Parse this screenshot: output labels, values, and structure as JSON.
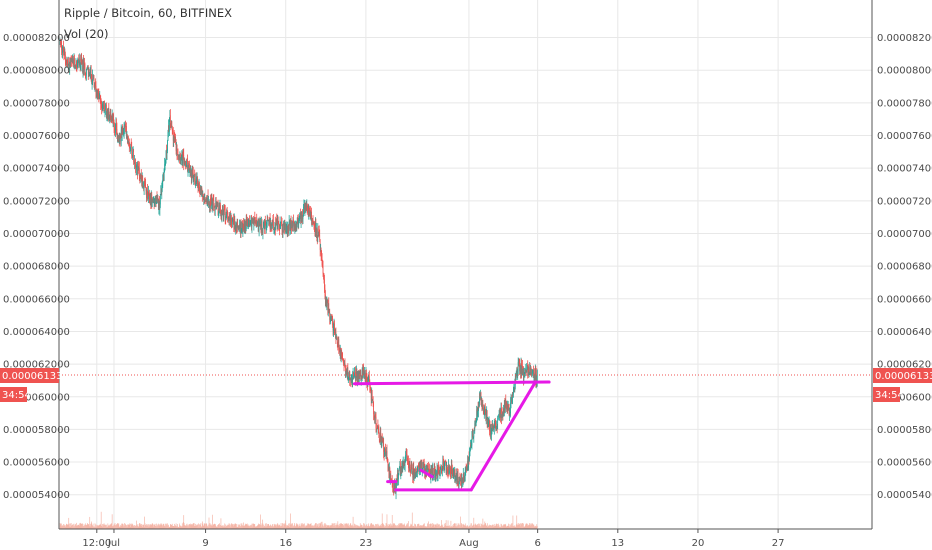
{
  "header": {
    "title": "Ripple / Bitcoin, 60, BITFINEX",
    "volume_label": "Vol (20)"
  },
  "colors": {
    "up": "#26a69a",
    "down": "#ef5350",
    "price_line": "#ef5350",
    "drawing": "#e619e6",
    "grid": "#e8e8e8",
    "volume": "#f5b6a8"
  },
  "chart_data": {
    "type": "candlestick",
    "symbol": "Ripple / Bitcoin",
    "interval": "60",
    "exchange": "BITFINEX",
    "y_axis_labels": [
      "0.000082000",
      "0.000080000",
      "0.000078000",
      "0.000076000",
      "0.000074000",
      "0.000072000",
      "0.000070000",
      "0.000068000",
      "0.000066000",
      "0.000064000",
      "0.000062000",
      "0.000060000",
      "0.000058000",
      "0.000056000",
      "0.000054000"
    ],
    "y_axis_values": [
      8.2e-05,
      8e-05,
      7.8e-05,
      7.6e-05,
      7.4e-05,
      7.2e-05,
      7e-05,
      6.8e-05,
      6.6e-05,
      6.4e-05,
      6.2e-05,
      6e-05,
      5.8e-05,
      5.6e-05,
      5.4e-05
    ],
    "ylim": [
      5.19e-05,
      8.43e-05
    ],
    "x_axis_labels": [
      "12:00",
      "Jul",
      "9",
      "16",
      "23",
      "Aug",
      "6",
      "13",
      "20",
      "27"
    ],
    "x_tick_days": [
      -0.5,
      1,
      9,
      16,
      23,
      32,
      38,
      45,
      52,
      59
    ],
    "xlim_days": [
      -3.8,
      67.2
    ],
    "last_price": "0.000061330",
    "last_price_value": 6.133e-05,
    "countdown": "34:54",
    "price_path": [
      [
        -3.7,
        8.18e-05
      ],
      [
        -3.0,
        8.03e-05
      ],
      [
        -2.0,
        8.05e-05
      ],
      [
        -1.0,
        7.97e-05
      ],
      [
        0.0,
        7.78e-05
      ],
      [
        0.8,
        7.72e-05
      ],
      [
        1.5,
        7.58e-05
      ],
      [
        2.0,
        7.65e-05
      ],
      [
        3.0,
        7.42e-05
      ],
      [
        4.0,
        7.22e-05
      ],
      [
        5.0,
        7.18e-05
      ],
      [
        5.6,
        7.48e-05
      ],
      [
        5.9,
        7.7e-05
      ],
      [
        6.5,
        7.52e-05
      ],
      [
        7.5,
        7.4e-05
      ],
      [
        8.5,
        7.28e-05
      ],
      [
        9.0,
        7.22e-05
      ],
      [
        10.0,
        7.15e-05
      ],
      [
        11.0,
        7.11e-05
      ],
      [
        12.0,
        7.03e-05
      ],
      [
        13.0,
        7.08e-05
      ],
      [
        14.0,
        7.04e-05
      ],
      [
        15.0,
        7.06e-05
      ],
      [
        16.0,
        7.03e-05
      ],
      [
        17.0,
        7.06e-05
      ],
      [
        17.8,
        7.16e-05
      ],
      [
        18.5,
        7.06e-05
      ],
      [
        19.0,
        6.96e-05
      ],
      [
        19.5,
        6.6e-05
      ],
      [
        20.0,
        6.48e-05
      ],
      [
        20.8,
        6.28e-05
      ],
      [
        21.5,
        6.13e-05
      ],
      [
        22.0,
        6.12e-05
      ],
      [
        22.8,
        6.14e-05
      ],
      [
        23.3,
        6.1e-05
      ],
      [
        24.0,
        5.8e-05
      ],
      [
        24.8,
        5.65e-05
      ],
      [
        25.2,
        5.48e-05
      ],
      [
        25.6,
        5.43e-05
      ],
      [
        26.0,
        5.56e-05
      ],
      [
        26.6,
        5.62e-05
      ],
      [
        27.2,
        5.53e-05
      ],
      [
        27.8,
        5.58e-05
      ],
      [
        28.4,
        5.54e-05
      ],
      [
        29.0,
        5.53e-05
      ],
      [
        29.8,
        5.58e-05
      ],
      [
        30.5,
        5.55e-05
      ],
      [
        31.2,
        5.48e-05
      ],
      [
        31.6,
        5.52e-05
      ],
      [
        32.0,
        5.6e-05
      ],
      [
        32.5,
        5.82e-05
      ],
      [
        33.0,
        6e-05
      ],
      [
        33.5,
        5.9e-05
      ],
      [
        34.0,
        5.78e-05
      ],
      [
        34.6,
        5.85e-05
      ],
      [
        35.2,
        5.96e-05
      ],
      [
        35.6,
        5.9e-05
      ],
      [
        36.0,
        6.06e-05
      ],
      [
        36.4,
        6.2e-05
      ],
      [
        36.8,
        6.14e-05
      ],
      [
        37.3,
        6.18e-05
      ],
      [
        37.7,
        6.12e-05
      ],
      [
        38.0,
        6.13e-05
      ]
    ],
    "annotations": [
      {
        "kind": "trend-line",
        "points": [
          [
            22.0,
            6.08e-05
          ],
          [
            39.0,
            6.09e-05
          ]
        ]
      },
      {
        "kind": "trend-line",
        "points": [
          [
            25.6,
            5.43e-05
          ],
          [
            32.2,
            5.43e-05
          ]
        ]
      },
      {
        "kind": "trend-line",
        "points": [
          [
            32.2,
            5.43e-05
          ],
          [
            37.8,
            6.09e-05
          ]
        ]
      },
      {
        "kind": "trend-line",
        "points": [
          [
            27.8,
            5.55e-05
          ],
          [
            28.8,
            5.51e-05
          ]
        ]
      },
      {
        "kind": "tick",
        "points": [
          [
            24.9,
            5.48e-05
          ],
          [
            25.6,
            5.48e-05
          ]
        ]
      }
    ],
    "legend": "top-left",
    "grid": true
  }
}
